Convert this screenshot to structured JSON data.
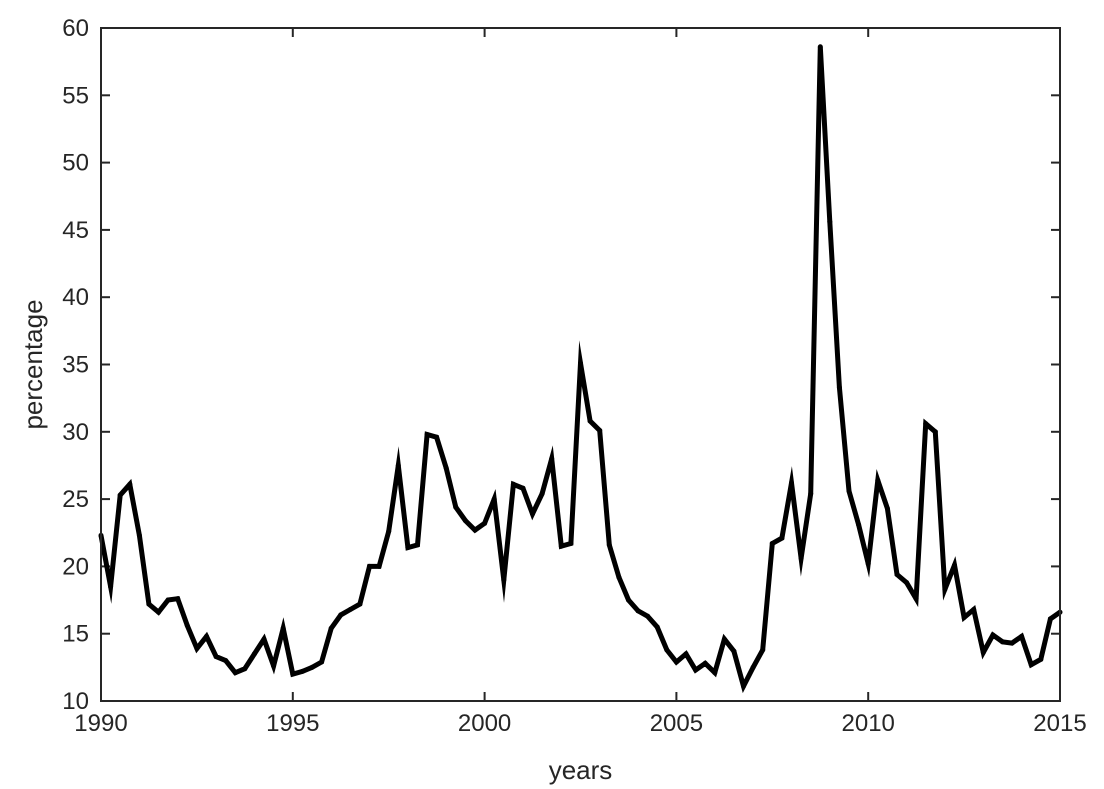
{
  "chart_data": {
    "type": "line",
    "title": "",
    "xlabel": "years",
    "ylabel": "percentage",
    "xlim": [
      1990,
      2015
    ],
    "ylim": [
      10,
      60
    ],
    "xticks": [
      1990,
      1995,
      2000,
      2005,
      2010,
      2015
    ],
    "yticks": [
      10,
      15,
      20,
      25,
      30,
      35,
      40,
      45,
      50,
      55,
      60
    ],
    "xtick_labels": [
      "1990",
      "1995",
      "2000",
      "2005",
      "2010",
      "2015"
    ],
    "ytick_labels": [
      "10",
      "15",
      "20",
      "25",
      "30",
      "35",
      "40",
      "45",
      "50",
      "55",
      "60"
    ],
    "grid": false,
    "series": [
      {
        "color": "#000000",
        "x": [
          1990.0,
          1990.25,
          1990.5,
          1990.75,
          1991.0,
          1991.25,
          1991.5,
          1991.75,
          1992.0,
          1992.25,
          1992.5,
          1992.75,
          1993.0,
          1993.25,
          1993.5,
          1993.75,
          1994.0,
          1994.25,
          1994.5,
          1994.75,
          1995.0,
          1995.25,
          1995.5,
          1995.75,
          1996.0,
          1996.25,
          1996.5,
          1996.75,
          1997.0,
          1997.25,
          1997.5,
          1997.75,
          1998.0,
          1998.25,
          1998.5,
          1998.75,
          1999.0,
          1999.25,
          1999.5,
          1999.75,
          2000.0,
          2000.25,
          2000.5,
          2000.75,
          2001.0,
          2001.25,
          2001.5,
          2001.75,
          2002.0,
          2002.25,
          2002.5,
          2002.75,
          2003.0,
          2003.25,
          2003.5,
          2003.75,
          2004.0,
          2004.25,
          2004.5,
          2004.75,
          2005.0,
          2005.25,
          2005.5,
          2005.75,
          2006.0,
          2006.25,
          2006.5,
          2006.75,
          2007.0,
          2007.25,
          2007.5,
          2007.75,
          2008.0,
          2008.25,
          2008.5,
          2008.75,
          2009.0,
          2009.25,
          2009.5,
          2009.75,
          2010.0,
          2010.25,
          2010.5,
          2010.75,
          2011.0,
          2011.25,
          2011.5,
          2011.75,
          2012.0,
          2012.25,
          2012.5,
          2012.75,
          2013.0,
          2013.25,
          2013.5,
          2013.75,
          2014.0,
          2014.25,
          2014.5,
          2014.75,
          2015.0
        ],
        "values": [
          22.3,
          18.5,
          25.3,
          26.1,
          22.3,
          17.2,
          16.6,
          17.5,
          17.6,
          15.6,
          13.9,
          14.8,
          13.3,
          13.0,
          12.1,
          12.4,
          13.5,
          14.6,
          12.6,
          15.4,
          12.0,
          12.2,
          12.5,
          12.9,
          15.4,
          16.4,
          16.8,
          17.2,
          20.0,
          20.0,
          22.6,
          27.5,
          21.4,
          21.6,
          29.8,
          29.6,
          27.3,
          24.4,
          23.4,
          22.7,
          23.2,
          25.0,
          19.0,
          26.1,
          25.8,
          23.9,
          25.4,
          28.0,
          21.5,
          21.7,
          35.1,
          30.8,
          30.1,
          21.6,
          19.2,
          17.5,
          16.7,
          16.3,
          15.5,
          13.8,
          12.9,
          13.5,
          12.3,
          12.8,
          12.1,
          14.6,
          13.7,
          11.1,
          12.5,
          13.8,
          21.7,
          22.1,
          26.2,
          20.6,
          25.4,
          58.6,
          45.6,
          33.3,
          25.6,
          23.1,
          20.2,
          26.4,
          24.3,
          19.4,
          18.8,
          17.6,
          30.6,
          30.0,
          18.3,
          20.1,
          16.2,
          16.8,
          13.6,
          14.9,
          14.4,
          14.3,
          14.8,
          12.7,
          13.1,
          16.1,
          16.6
        ]
      }
    ]
  }
}
